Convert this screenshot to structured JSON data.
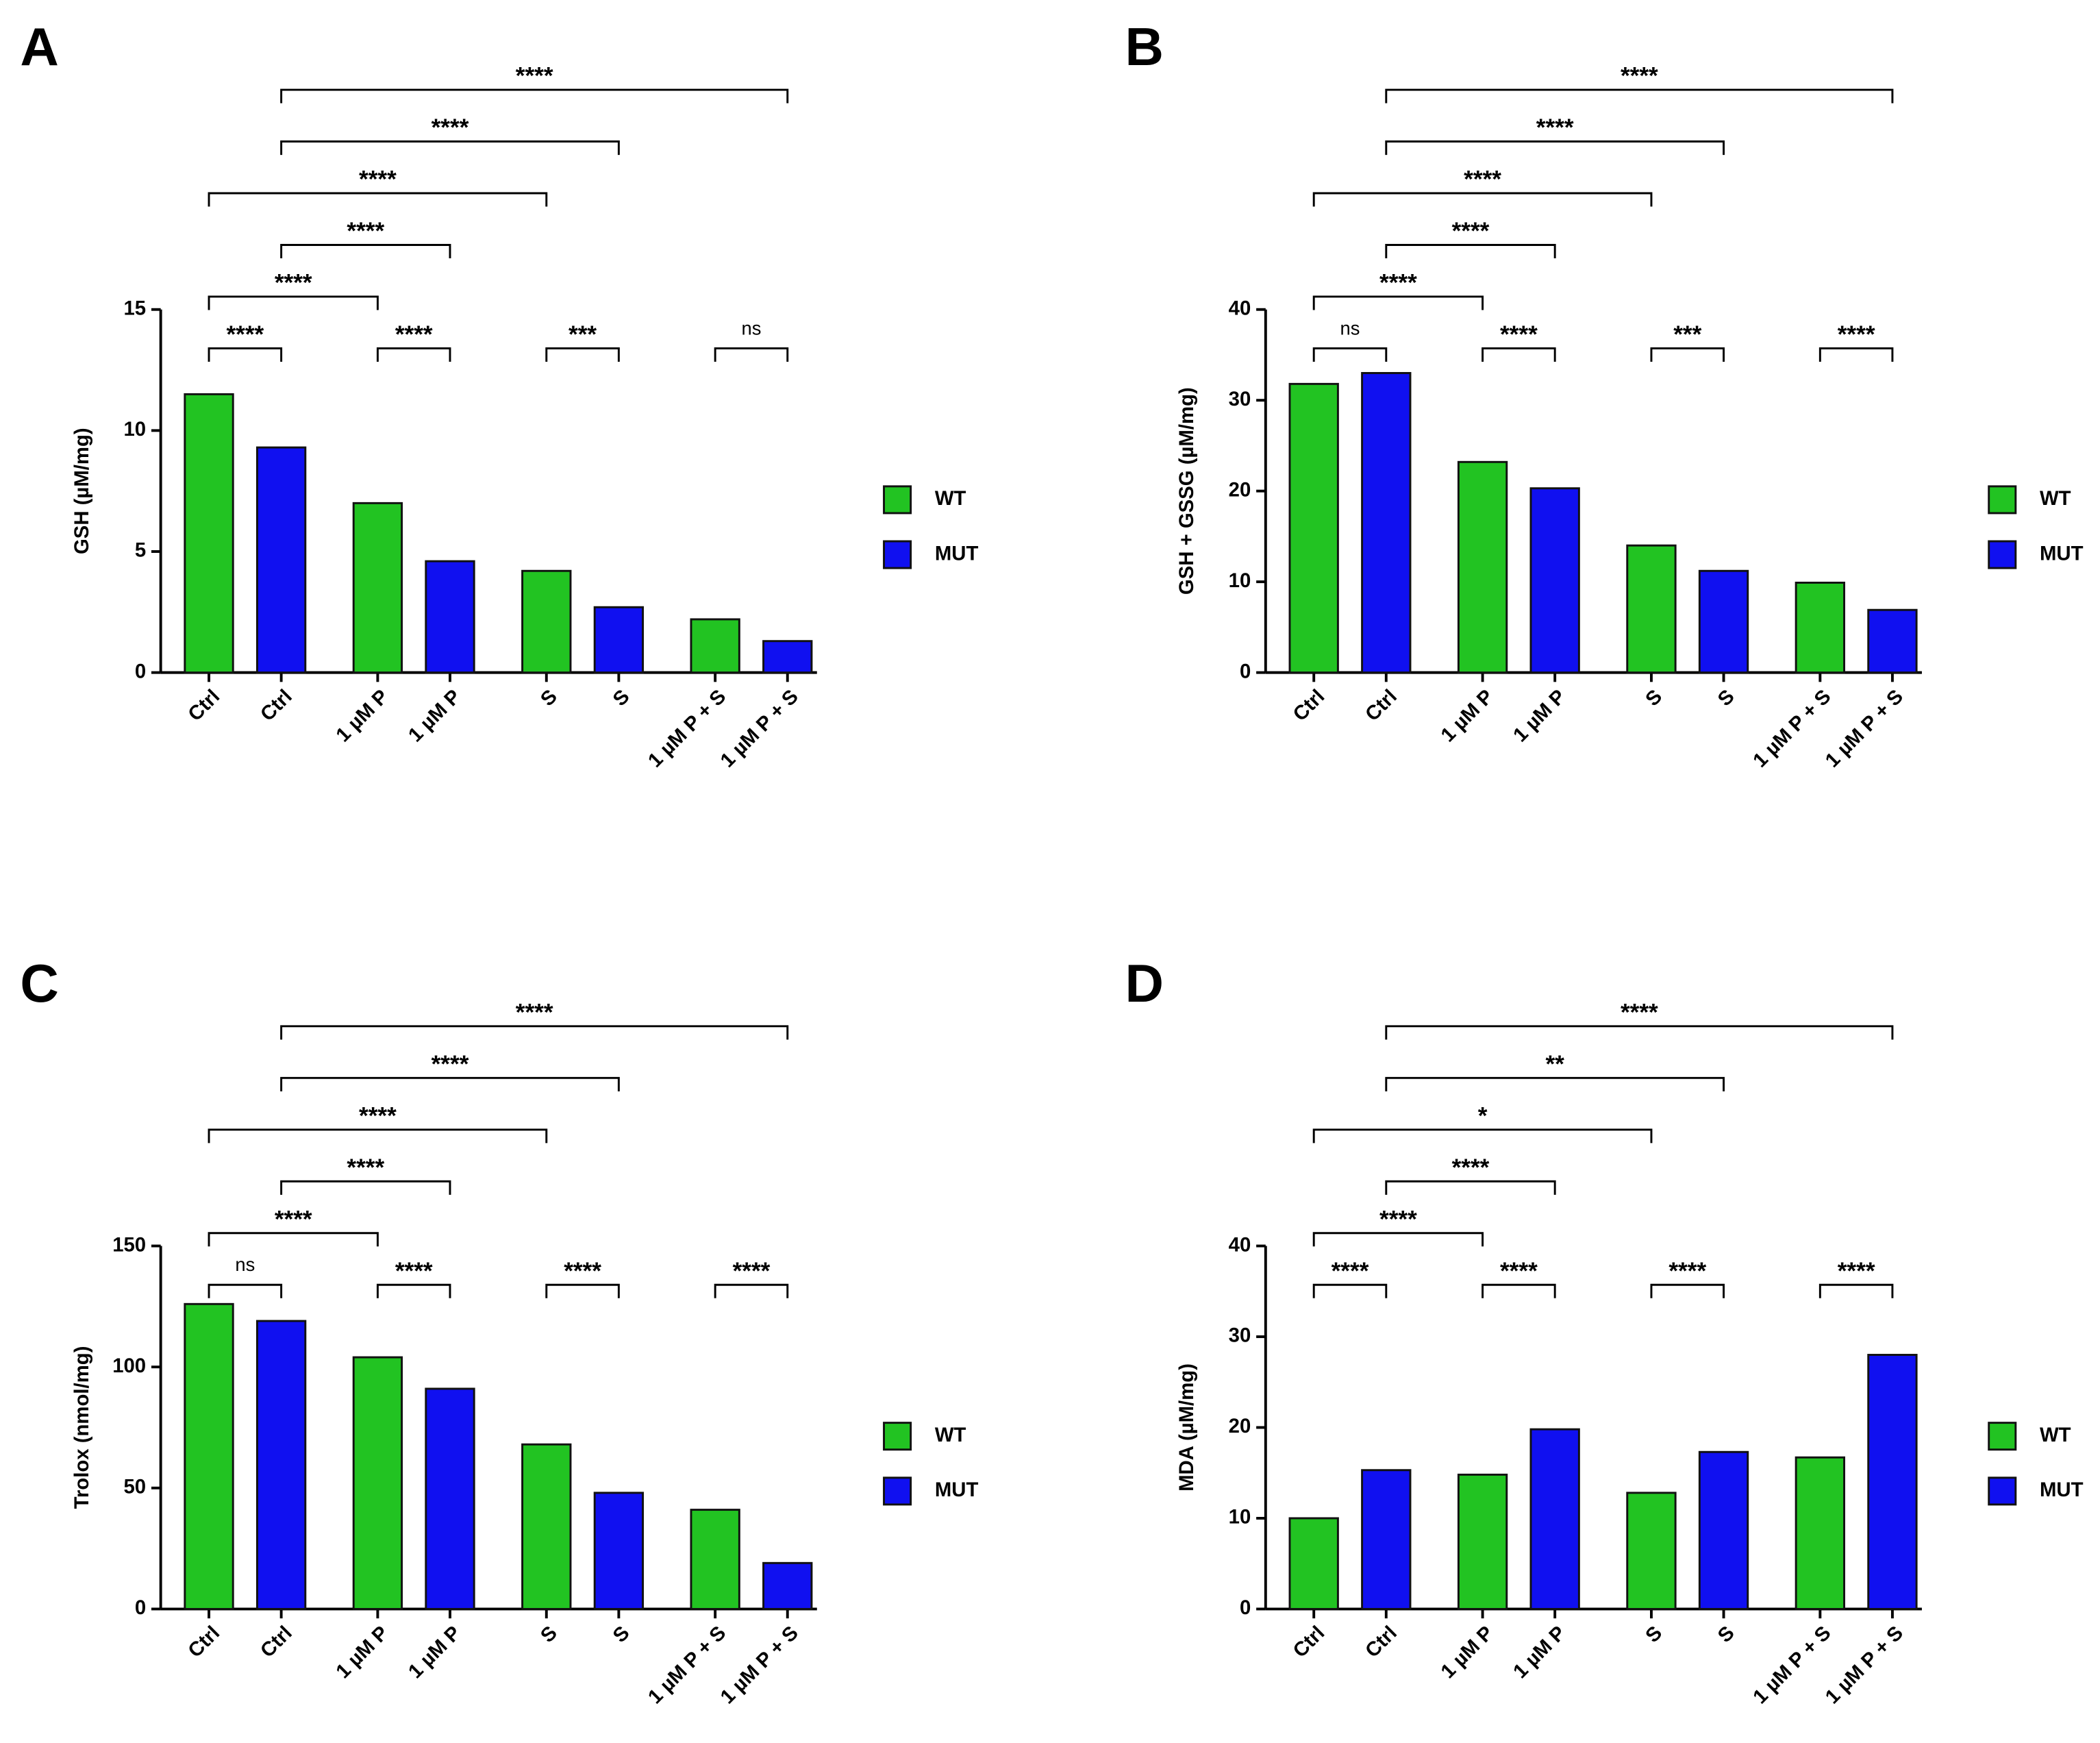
{
  "chart_data": [
    {
      "type": "bar",
      "panel": "A",
      "ylabel": "GSH (µM/mg)",
      "categories": [
        "Ctrl",
        "Ctrl",
        "1 µM P",
        "1 µM P",
        "S",
        "S",
        "1 µM P + S",
        "1 µM P + S"
      ],
      "series": [
        {
          "name": "WT",
          "color": "#22c322",
          "values": [
            11.5,
            null,
            7.0,
            null,
            4.2,
            null,
            2.2,
            null
          ]
        },
        {
          "name": "MUT",
          "color": "#1010f0",
          "values": [
            null,
            9.3,
            null,
            4.6,
            null,
            2.7,
            null,
            1.3
          ]
        }
      ],
      "ylim": [
        0,
        15
      ],
      "yticks": [
        0,
        5,
        10,
        15
      ],
      "annotations": [
        {
          "label": "****",
          "from": 0,
          "to": 1
        },
        {
          "label": "****",
          "from": 2,
          "to": 3
        },
        {
          "label": "***",
          "from": 4,
          "to": 5
        },
        {
          "label": "ns",
          "from": 6,
          "to": 7
        },
        {
          "label": "****",
          "from": 0,
          "to": 2
        },
        {
          "label": "****",
          "from": 1,
          "to": 3
        },
        {
          "label": "****",
          "from": 0,
          "to": 4
        },
        {
          "label": "****",
          "from": 1,
          "to": 5
        },
        {
          "label": "****",
          "from": 1,
          "to": 7
        }
      ]
    },
    {
      "type": "bar",
      "panel": "B",
      "ylabel": "GSH + GSSG (µM/mg)",
      "categories": [
        "Ctrl",
        "Ctrl",
        "1 µM P",
        "1 µM P",
        "S",
        "S",
        "1 µM P + S",
        "1 µM P + S"
      ],
      "series": [
        {
          "name": "WT",
          "color": "#22c322",
          "values": [
            31.8,
            null,
            23.2,
            null,
            14.0,
            null,
            9.9,
            null
          ]
        },
        {
          "name": "MUT",
          "color": "#1010f0",
          "values": [
            null,
            33.0,
            null,
            20.3,
            null,
            11.2,
            null,
            6.9
          ]
        }
      ],
      "ylim": [
        0,
        40
      ],
      "yticks": [
        0,
        10,
        20,
        30,
        40
      ],
      "annotations": [
        {
          "label": "ns",
          "from": 0,
          "to": 1
        },
        {
          "label": "****",
          "from": 2,
          "to": 3
        },
        {
          "label": "***",
          "from": 4,
          "to": 5
        },
        {
          "label": "****",
          "from": 6,
          "to": 7
        },
        {
          "label": "****",
          "from": 0,
          "to": 2
        },
        {
          "label": "****",
          "from": 1,
          "to": 3
        },
        {
          "label": "****",
          "from": 0,
          "to": 4
        },
        {
          "label": "****",
          "from": 1,
          "to": 5
        },
        {
          "label": "****",
          "from": 1,
          "to": 7
        }
      ]
    },
    {
      "type": "bar",
      "panel": "C",
      "ylabel": "Trolox (nmol/mg)",
      "categories": [
        "Ctrl",
        "Ctrl",
        "1 µM P",
        "1 µM P",
        "S",
        "S",
        "1 µM P + S",
        "1 µM P + S"
      ],
      "series": [
        {
          "name": "WT",
          "color": "#22c322",
          "values": [
            126,
            null,
            104,
            null,
            68,
            null,
            41,
            null
          ]
        },
        {
          "name": "MUT",
          "color": "#1010f0",
          "values": [
            null,
            119,
            null,
            91,
            null,
            48,
            null,
            19
          ]
        }
      ],
      "ylim": [
        0,
        150
      ],
      "yticks": [
        0,
        50,
        100,
        150
      ],
      "annotations": [
        {
          "label": "ns",
          "from": 0,
          "to": 1
        },
        {
          "label": "****",
          "from": 2,
          "to": 3
        },
        {
          "label": "****",
          "from": 4,
          "to": 5
        },
        {
          "label": "****",
          "from": 6,
          "to": 7
        },
        {
          "label": "****",
          "from": 0,
          "to": 2
        },
        {
          "label": "****",
          "from": 1,
          "to": 3
        },
        {
          "label": "****",
          "from": 0,
          "to": 4
        },
        {
          "label": "****",
          "from": 1,
          "to": 5
        },
        {
          "label": "****",
          "from": 1,
          "to": 7
        }
      ]
    },
    {
      "type": "bar",
      "panel": "D",
      "ylabel": "MDA (µM/mg)",
      "categories": [
        "Ctrl",
        "Ctrl",
        "1 µM P",
        "1 µM P",
        "S",
        "S",
        "1 µM P + S",
        "1 µM P + S"
      ],
      "series": [
        {
          "name": "WT",
          "color": "#22c322",
          "values": [
            10.0,
            null,
            14.8,
            null,
            12.8,
            null,
            16.7,
            null
          ]
        },
        {
          "name": "MUT",
          "color": "#1010f0",
          "values": [
            null,
            15.3,
            null,
            19.8,
            null,
            17.3,
            null,
            28.0
          ]
        }
      ],
      "ylim": [
        0,
        40
      ],
      "yticks": [
        0,
        10,
        20,
        30,
        40
      ],
      "annotations": [
        {
          "label": "****",
          "from": 0,
          "to": 1
        },
        {
          "label": "****",
          "from": 2,
          "to": 3
        },
        {
          "label": "****",
          "from": 4,
          "to": 5
        },
        {
          "label": "****",
          "from": 6,
          "to": 7
        },
        {
          "label": "****",
          "from": 0,
          "to": 2
        },
        {
          "label": "****",
          "from": 1,
          "to": 3
        },
        {
          "label": "*",
          "from": 0,
          "to": 4
        },
        {
          "label": "**",
          "from": 1,
          "to": 5
        },
        {
          "label": "****",
          "from": 1,
          "to": 7
        }
      ]
    }
  ]
}
